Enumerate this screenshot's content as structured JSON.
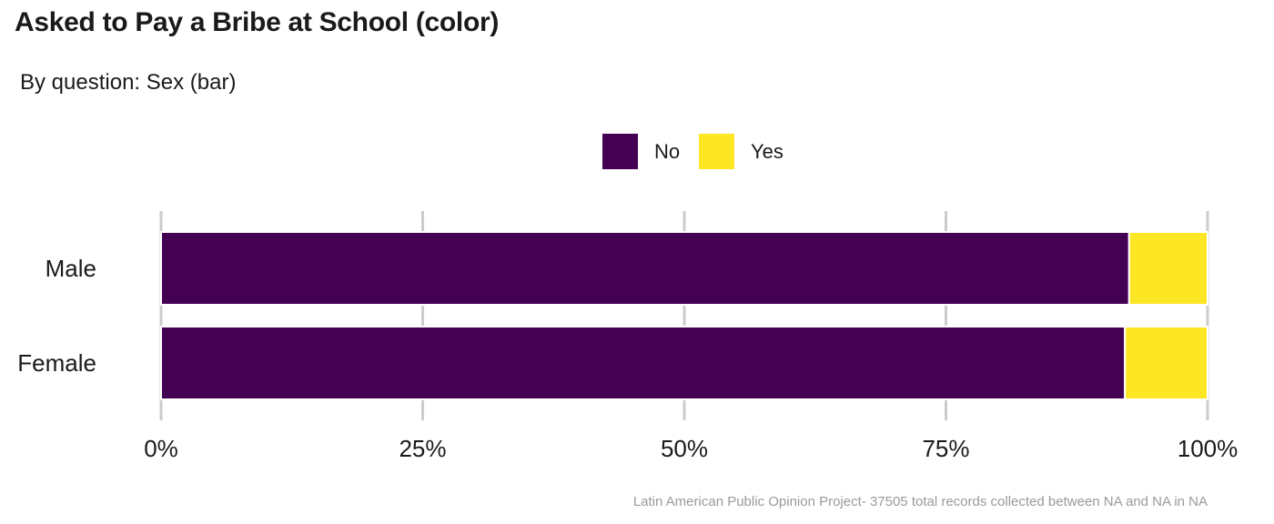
{
  "title": "Asked to Pay a Bribe at School (color)",
  "subtitle": "By question: Sex (bar)",
  "caption": "Latin American Public Opinion Project- 37505 total records collected between NA and NA in  NA",
  "colors": {
    "No": "#440154",
    "Yes": "#FDE725",
    "grid": "#cccccc"
  },
  "chart_data": {
    "type": "bar",
    "orientation": "horizontal",
    "stacked": true,
    "title": "Asked to Pay a Bribe at School (color)",
    "subtitle": "By question: Sex (bar)",
    "categories": [
      "Male",
      "Female"
    ],
    "series": [
      {
        "name": "No",
        "values": [
          92.5,
          92.1
        ]
      },
      {
        "name": "Yes",
        "values": [
          7.5,
          7.9
        ]
      }
    ],
    "xlim": [
      0,
      100
    ],
    "x_ticks": [
      "0%",
      "25%",
      "50%",
      "75%",
      "100%"
    ],
    "xlabel": "",
    "ylabel": "",
    "legend_position": "top",
    "grid": true
  }
}
